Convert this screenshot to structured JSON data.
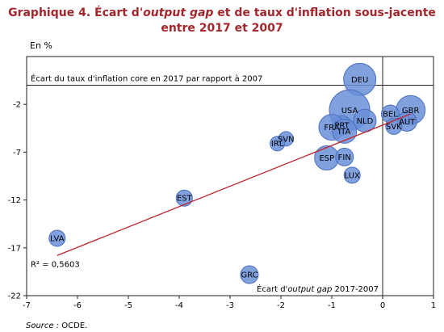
{
  "title": {
    "part1": "Graphique 4. Écart d'",
    "italic": "output gap",
    "part2": " et de taux d'inflation sous-jacente",
    "line2": "entre 2017 et 2007"
  },
  "source": {
    "label": "Source :",
    "text": " OCDE."
  },
  "chart_data": {
    "type": "scatter",
    "title": "Graphique 4. Écart d'output gap et de taux d'inflation sous-jacente entre 2017 et 2007",
    "unit_label": "En %",
    "ylabel": "Écart du taux d'inflation core en 2017 par rapport à 2007",
    "xlabel": "Écart d'output gap 2017-2007",
    "xlim": [
      -7,
      1
    ],
    "ylim": [
      -22,
      3
    ],
    "xticks": [
      -7,
      -6,
      -5,
      -4,
      -3,
      -2,
      -1,
      0,
      1
    ],
    "yticks": [
      -22,
      -17,
      -12,
      -7,
      -2
    ],
    "grid": false,
    "colors": {
      "bubble_fill": "#6a8fd8",
      "bubble_stroke": "#4a6fc0",
      "trend": "#c0262d",
      "title": "#a3262d"
    },
    "points": [
      {
        "label": "DEU",
        "x": -0.45,
        "y": 0.6,
        "size": 20
      },
      {
        "label": "USA",
        "x": -0.65,
        "y": -2.6,
        "size": 25
      },
      {
        "label": "GBR",
        "x": 0.55,
        "y": -2.6,
        "size": 18
      },
      {
        "label": "BEL",
        "x": 0.15,
        "y": -3.0,
        "size": 11
      },
      {
        "label": "NLD",
        "x": -0.35,
        "y": -3.7,
        "size": 14
      },
      {
        "label": "AUT",
        "x": 0.48,
        "y": -3.8,
        "size": 12
      },
      {
        "label": "SVK",
        "x": 0.22,
        "y": -4.3,
        "size": 10
      },
      {
        "label": "PRT",
        "x": -0.8,
        "y": -4.2,
        "size": 12
      },
      {
        "label": "FRA",
        "x": -1.0,
        "y": -4.4,
        "size": 16
      },
      {
        "label": "ITA",
        "x": -0.75,
        "y": -4.8,
        "size": 15
      },
      {
        "label": "SVN",
        "x": -1.9,
        "y": -5.6,
        "size": 9
      },
      {
        "label": "IRL",
        "x": -2.07,
        "y": -6.1,
        "size": 9
      },
      {
        "label": "ESP",
        "x": -1.1,
        "y": -7.6,
        "size": 15
      },
      {
        "label": "FIN",
        "x": -0.75,
        "y": -7.5,
        "size": 11
      },
      {
        "label": "LUX",
        "x": -0.6,
        "y": -9.4,
        "size": 10
      },
      {
        "label": "EST",
        "x": -3.9,
        "y": -11.8,
        "size": 10
      },
      {
        "label": "LVA",
        "x": -6.4,
        "y": -16.0,
        "size": 10
      },
      {
        "label": "GRC",
        "x": -2.62,
        "y": -19.8,
        "size": 11
      }
    ],
    "trendline": {
      "x": [
        -6.4,
        0.55
      ],
      "y": [
        -17.8,
        -3.0
      ]
    },
    "annotations": {
      "r2": "R² = 0,5603",
      "xaxis_title_part1": "Écart d'",
      "xaxis_title_italic": "output gap",
      "xaxis_title_part2": " 2017-2007"
    }
  }
}
